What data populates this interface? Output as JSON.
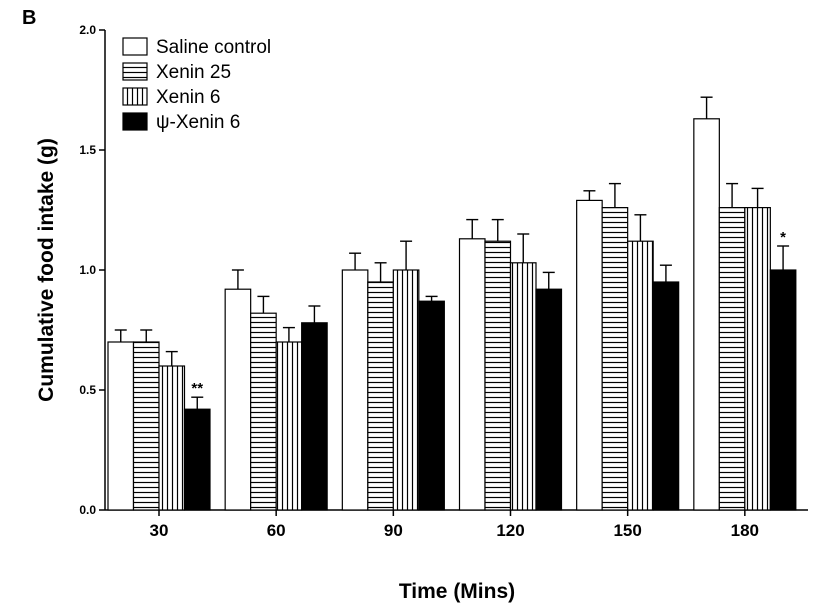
{
  "panel_label": "B",
  "chart_data": {
    "type": "bar",
    "title": "",
    "xlabel": "Time (Mins)",
    "ylabel": "Cumulative food intake (g)",
    "ylim": [
      0,
      2.0
    ],
    "yticks": [
      "0.0",
      "0.5",
      "1.0",
      "1.5",
      "2.0"
    ],
    "categories": [
      "30",
      "60",
      "90",
      "120",
      "150",
      "180"
    ],
    "legend_position": "top-left",
    "grid": false,
    "series": [
      {
        "name": "Saline control",
        "pattern": "open",
        "values": [
          0.7,
          0.92,
          1.0,
          1.13,
          1.29,
          1.63
        ],
        "errors": [
          0.05,
          0.08,
          0.07,
          0.08,
          0.04,
          0.09
        ]
      },
      {
        "name": "Xenin 25",
        "pattern": "horizontal-hatch",
        "values": [
          0.7,
          0.82,
          0.95,
          1.12,
          1.26,
          1.26
        ],
        "errors": [
          0.05,
          0.07,
          0.08,
          0.09,
          0.1,
          0.1
        ]
      },
      {
        "name": "Xenin 6",
        "pattern": "vertical-hatch",
        "values": [
          0.6,
          0.7,
          1.0,
          1.03,
          1.12,
          1.26
        ],
        "errors": [
          0.06,
          0.06,
          0.12,
          0.12,
          0.11,
          0.08
        ]
      },
      {
        "name": "ψ-Xenin 6",
        "pattern": "solid-black",
        "values": [
          0.42,
          0.78,
          0.87,
          0.92,
          0.95,
          1.0
        ],
        "errors": [
          0.05,
          0.07,
          0.02,
          0.07,
          0.07,
          0.1
        ]
      }
    ],
    "annotations": [
      {
        "series": 3,
        "category": "30",
        "text": "**"
      },
      {
        "series": 3,
        "category": "180",
        "text": "*"
      }
    ],
    "colors": {
      "fill_open": "#ffffff",
      "fill_solid": "#000000",
      "stroke": "#000000"
    }
  }
}
